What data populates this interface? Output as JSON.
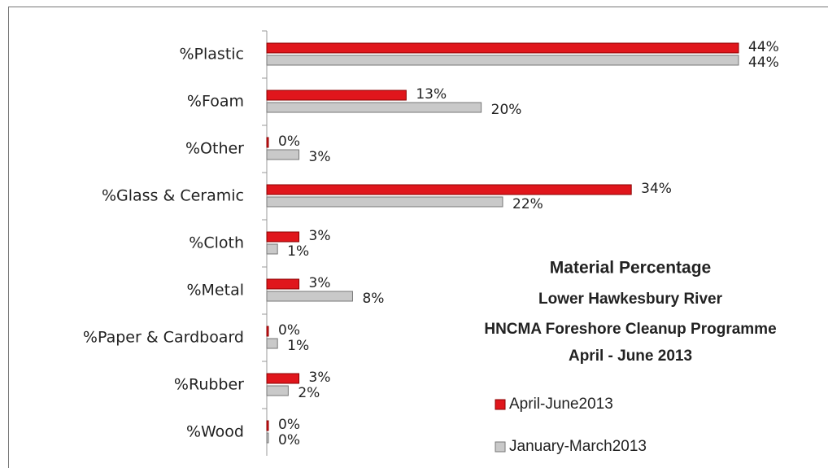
{
  "chart_data": {
    "type": "hbar",
    "title": "Material Percentage",
    "subtitle": [
      "Lower Hawkesbury River",
      "HNCMA Foreshore Cleanup Programme",
      "April - June 2013"
    ],
    "categories": [
      "%Plastic",
      "%Foam",
      "%Other",
      "%Glass & Ceramic",
      "%Cloth",
      "%Metal",
      "%Paper & Cardboard",
      "%Rubber",
      "%Wood"
    ],
    "series": [
      {
        "name": "April-June2013",
        "color": "#e0161c",
        "values": [
          44,
          13,
          0,
          34,
          3,
          3,
          0,
          3,
          0
        ],
        "value_labels": [
          "44%",
          "13%",
          "0%",
          "34%",
          "3%",
          "3%",
          "0%",
          "3%",
          "0%"
        ]
      },
      {
        "name": "January-March2013",
        "color": "#c9c9c9",
        "values": [
          44,
          20,
          3,
          22,
          1,
          8,
          1,
          2,
          0
        ],
        "value_labels": [
          "44%",
          "20%",
          "3%",
          "22%",
          "1%",
          "8%",
          "1%",
          "2%",
          "0%"
        ]
      }
    ],
    "legend": "lower-right"
  }
}
